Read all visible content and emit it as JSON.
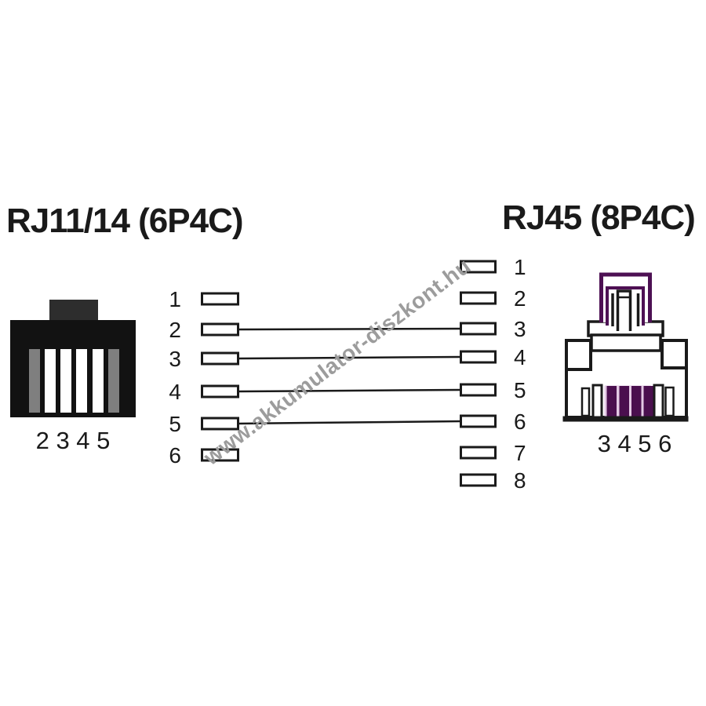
{
  "page": {
    "background": "#ffffff"
  },
  "left_connector": {
    "title": "RJ11/14 (6P4C)",
    "pins_label": "2 3 4 5",
    "colors": {
      "body": "#121212",
      "tab": "#2d2d2d",
      "inactive_pin": "#7f7f7f",
      "active_pin": "#ffffff"
    }
  },
  "right_connector": {
    "title": "RJ45 (8P4C)",
    "pins_label": "3 4 5 6",
    "colors": {
      "outline": "#1a1a1a",
      "latch": "#4d1053",
      "active_pin": "#4a0f4e",
      "pin_gap": "#e3c9e4"
    }
  },
  "pinout": {
    "left_pins": [
      "1",
      "2",
      "3",
      "4",
      "5",
      "6"
    ],
    "right_pins": [
      "1",
      "2",
      "3",
      "4",
      "5",
      "6",
      "7",
      "8"
    ],
    "connections": [
      {
        "from": "2",
        "to": "3"
      },
      {
        "from": "3",
        "to": "4"
      },
      {
        "from": "4",
        "to": "5"
      },
      {
        "from": "5",
        "to": "6"
      }
    ]
  },
  "watermark": {
    "text": "www.akkumulator-diszkont.hu",
    "color": "#9c9c9c"
  }
}
